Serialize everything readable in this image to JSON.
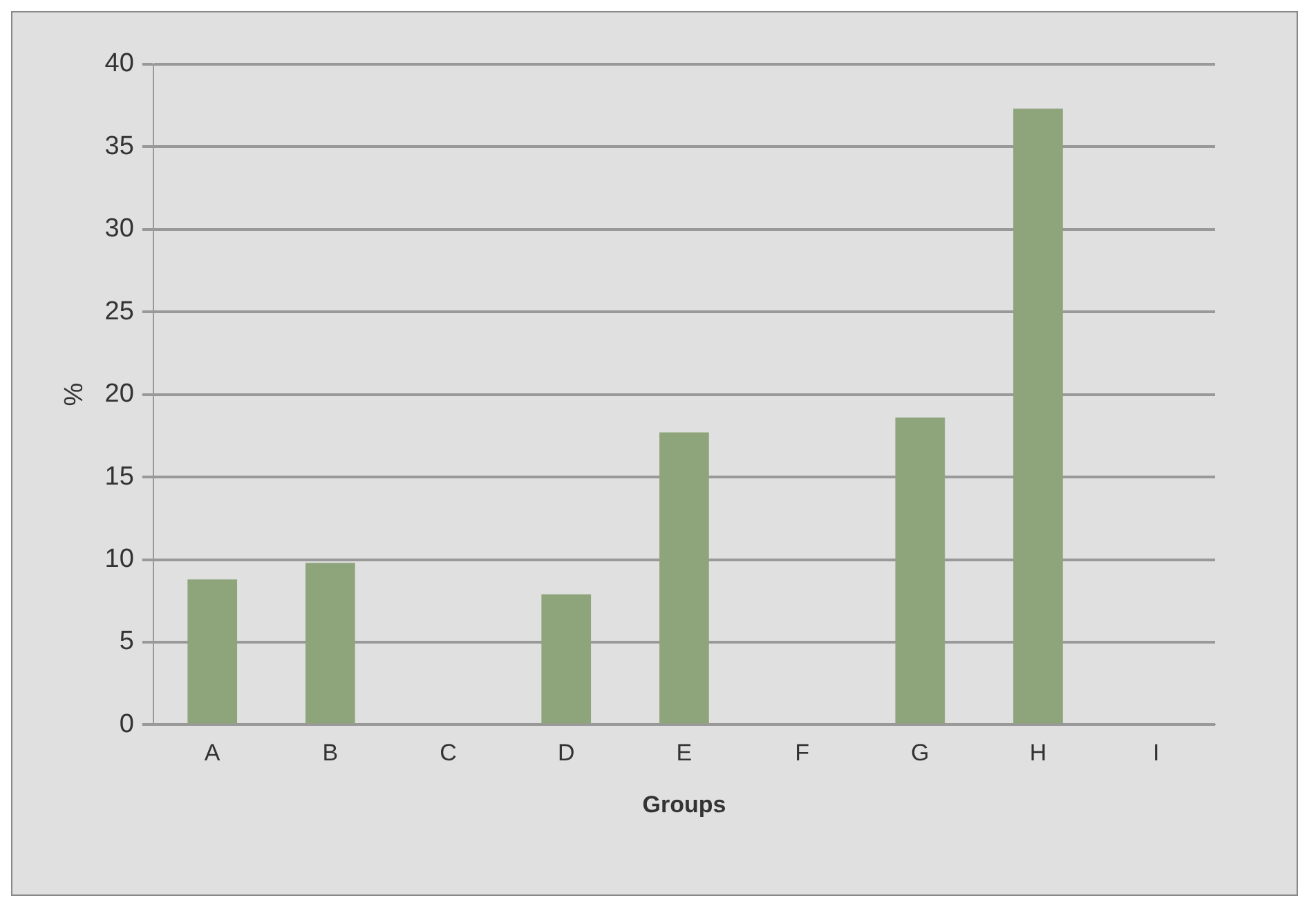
{
  "chart_data": {
    "type": "bar",
    "xlabel": "Groups",
    "ylabel": "%",
    "categories": [
      "A",
      "B",
      "C",
      "D",
      "E",
      "F",
      "G",
      "H",
      "I"
    ],
    "values": [
      8.8,
      9.8,
      0,
      7.9,
      17.7,
      0,
      18.6,
      37.3,
      0
    ],
    "color": "#8ea57c",
    "ylim": [
      0,
      40
    ],
    "yticks": [
      0,
      5,
      10,
      15,
      20,
      25,
      30,
      35,
      40
    ],
    "grid": "y",
    "legend": false
  }
}
